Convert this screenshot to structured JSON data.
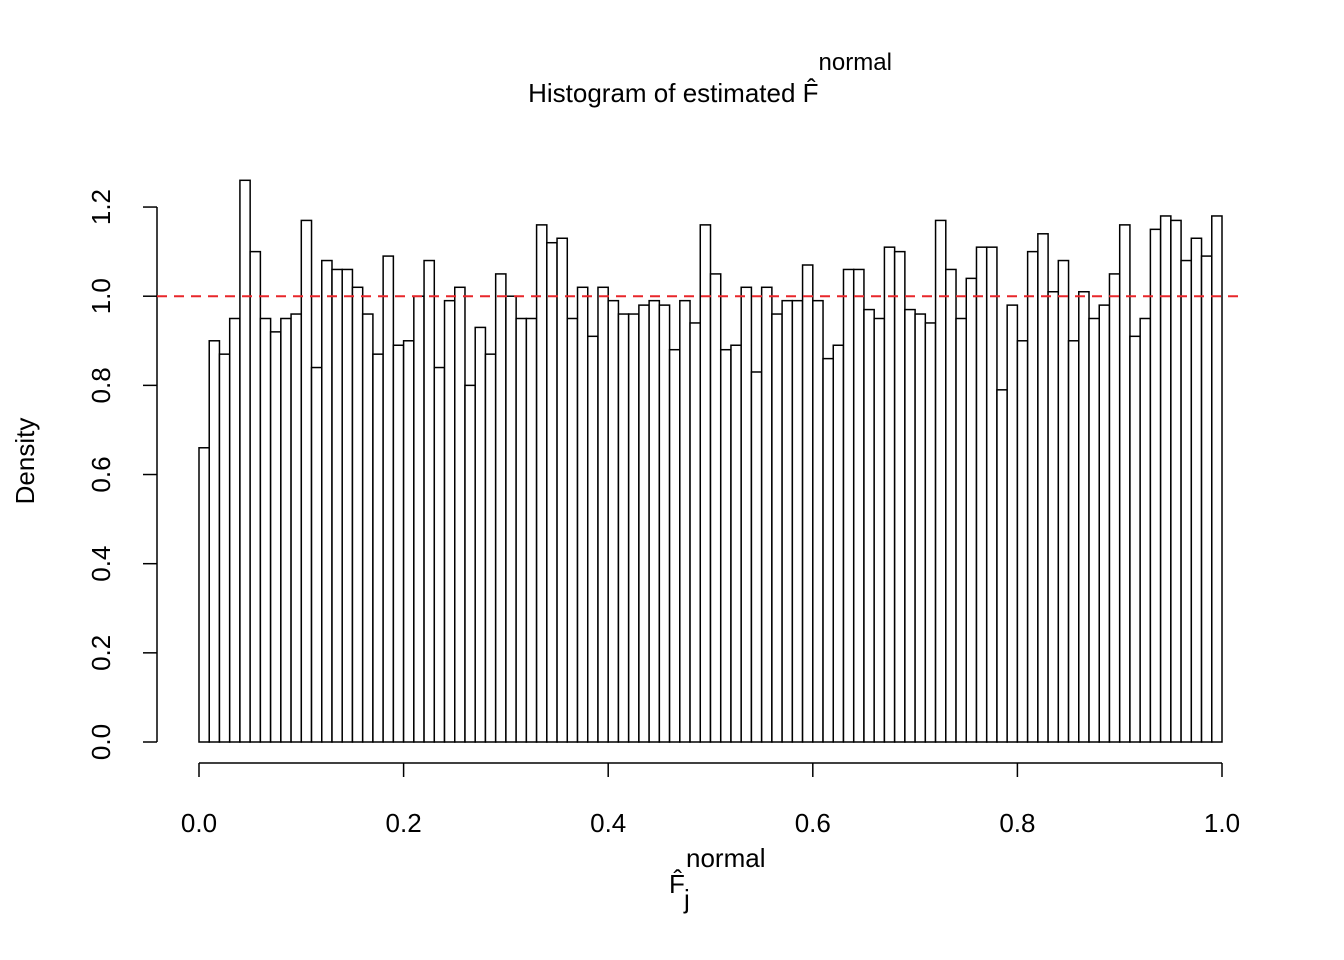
{
  "chart_data": {
    "type": "histogram",
    "title": "Histogram of estimated",
    "title_symbol": "F̂",
    "title_superscript": "normal",
    "x_label": "F̂",
    "x_label_superscript": "normal",
    "x_label_subscript": "j",
    "y_label": "Density",
    "bins": [
      0,
      0.01,
      0.02,
      0.03,
      0.04,
      0.05,
      0.06,
      0.07,
      0.08,
      0.09,
      0.1,
      0.11,
      0.12,
      0.13,
      0.14,
      0.15,
      0.16,
      0.17,
      0.18,
      0.19,
      0.2,
      0.21,
      0.22,
      0.23,
      0.24,
      0.25,
      0.26,
      0.27,
      0.28,
      0.29,
      0.3,
      0.31,
      0.32,
      0.33,
      0.34,
      0.35,
      0.36,
      0.37,
      0.38,
      0.39,
      0.4,
      0.41,
      0.42,
      0.43,
      0.44,
      0.45,
      0.46,
      0.47,
      0.48,
      0.49,
      0.5,
      0.51,
      0.52,
      0.53,
      0.54,
      0.55,
      0.56,
      0.57,
      0.58,
      0.59,
      0.6,
      0.61,
      0.62,
      0.63,
      0.64,
      0.65,
      0.66,
      0.67,
      0.68,
      0.69,
      0.7,
      0.71,
      0.72,
      0.73,
      0.74,
      0.75,
      0.76,
      0.77,
      0.78,
      0.79,
      0.8,
      0.81,
      0.82,
      0.83,
      0.84,
      0.85,
      0.86,
      0.87,
      0.88,
      0.89,
      0.9,
      0.91,
      0.92,
      0.93,
      0.94,
      0.95,
      0.96,
      0.97,
      0.98,
      0.99,
      1
    ],
    "values": [
      0.66,
      0.9,
      0.87,
      0.95,
      1.26,
      1.1,
      0.95,
      0.92,
      0.95,
      0.96,
      1.17,
      0.84,
      1.08,
      1.06,
      1.06,
      1.02,
      0.96,
      0.87,
      1.09,
      0.89,
      0.9,
      1.0,
      1.08,
      0.84,
      0.99,
      1.02,
      0.8,
      0.93,
      0.87,
      1.05,
      1.0,
      0.95,
      0.95,
      1.16,
      1.12,
      1.13,
      0.95,
      1.02,
      0.91,
      1.02,
      0.99,
      0.96,
      0.96,
      0.98,
      0.99,
      0.98,
      0.88,
      0.99,
      0.94,
      1.16,
      1.05,
      0.88,
      0.89,
      1.02,
      0.83,
      1.02,
      0.96,
      0.99,
      0.99,
      1.07,
      0.99,
      0.86,
      0.89,
      1.06,
      1.06,
      0.97,
      0.95,
      1.11,
      1.1,
      0.97,
      0.96,
      0.94,
      1.17,
      1.06,
      0.95,
      1.04,
      1.11,
      1.11,
      0.79,
      0.98,
      0.9,
      1.1,
      1.14,
      1.01,
      1.08,
      0.9,
      1.01,
      0.95,
      0.98,
      1.05,
      1.16,
      0.91,
      0.95,
      1.15,
      1.18,
      1.17,
      1.08,
      1.13,
      1.09,
      1.18
    ],
    "color": "#ffffff",
    "edge_color": "#000000",
    "xlim": [
      0,
      1
    ],
    "ylim": [
      0,
      1.26
    ],
    "xticks": [
      {
        "value": 0,
        "label": "0.0"
      },
      0.2,
      0.4,
      0.6,
      0.8,
      {
        "value": 1,
        "label": "1.0"
      }
    ],
    "yticks": [
      {
        "value": 0,
        "label": "0.0"
      },
      0.2,
      0.4,
      0.6,
      0.8,
      {
        "value": 1,
        "label": "1.0"
      },
      1.2
    ],
    "hline": 1,
    "hline_color": "#e8262a"
  }
}
